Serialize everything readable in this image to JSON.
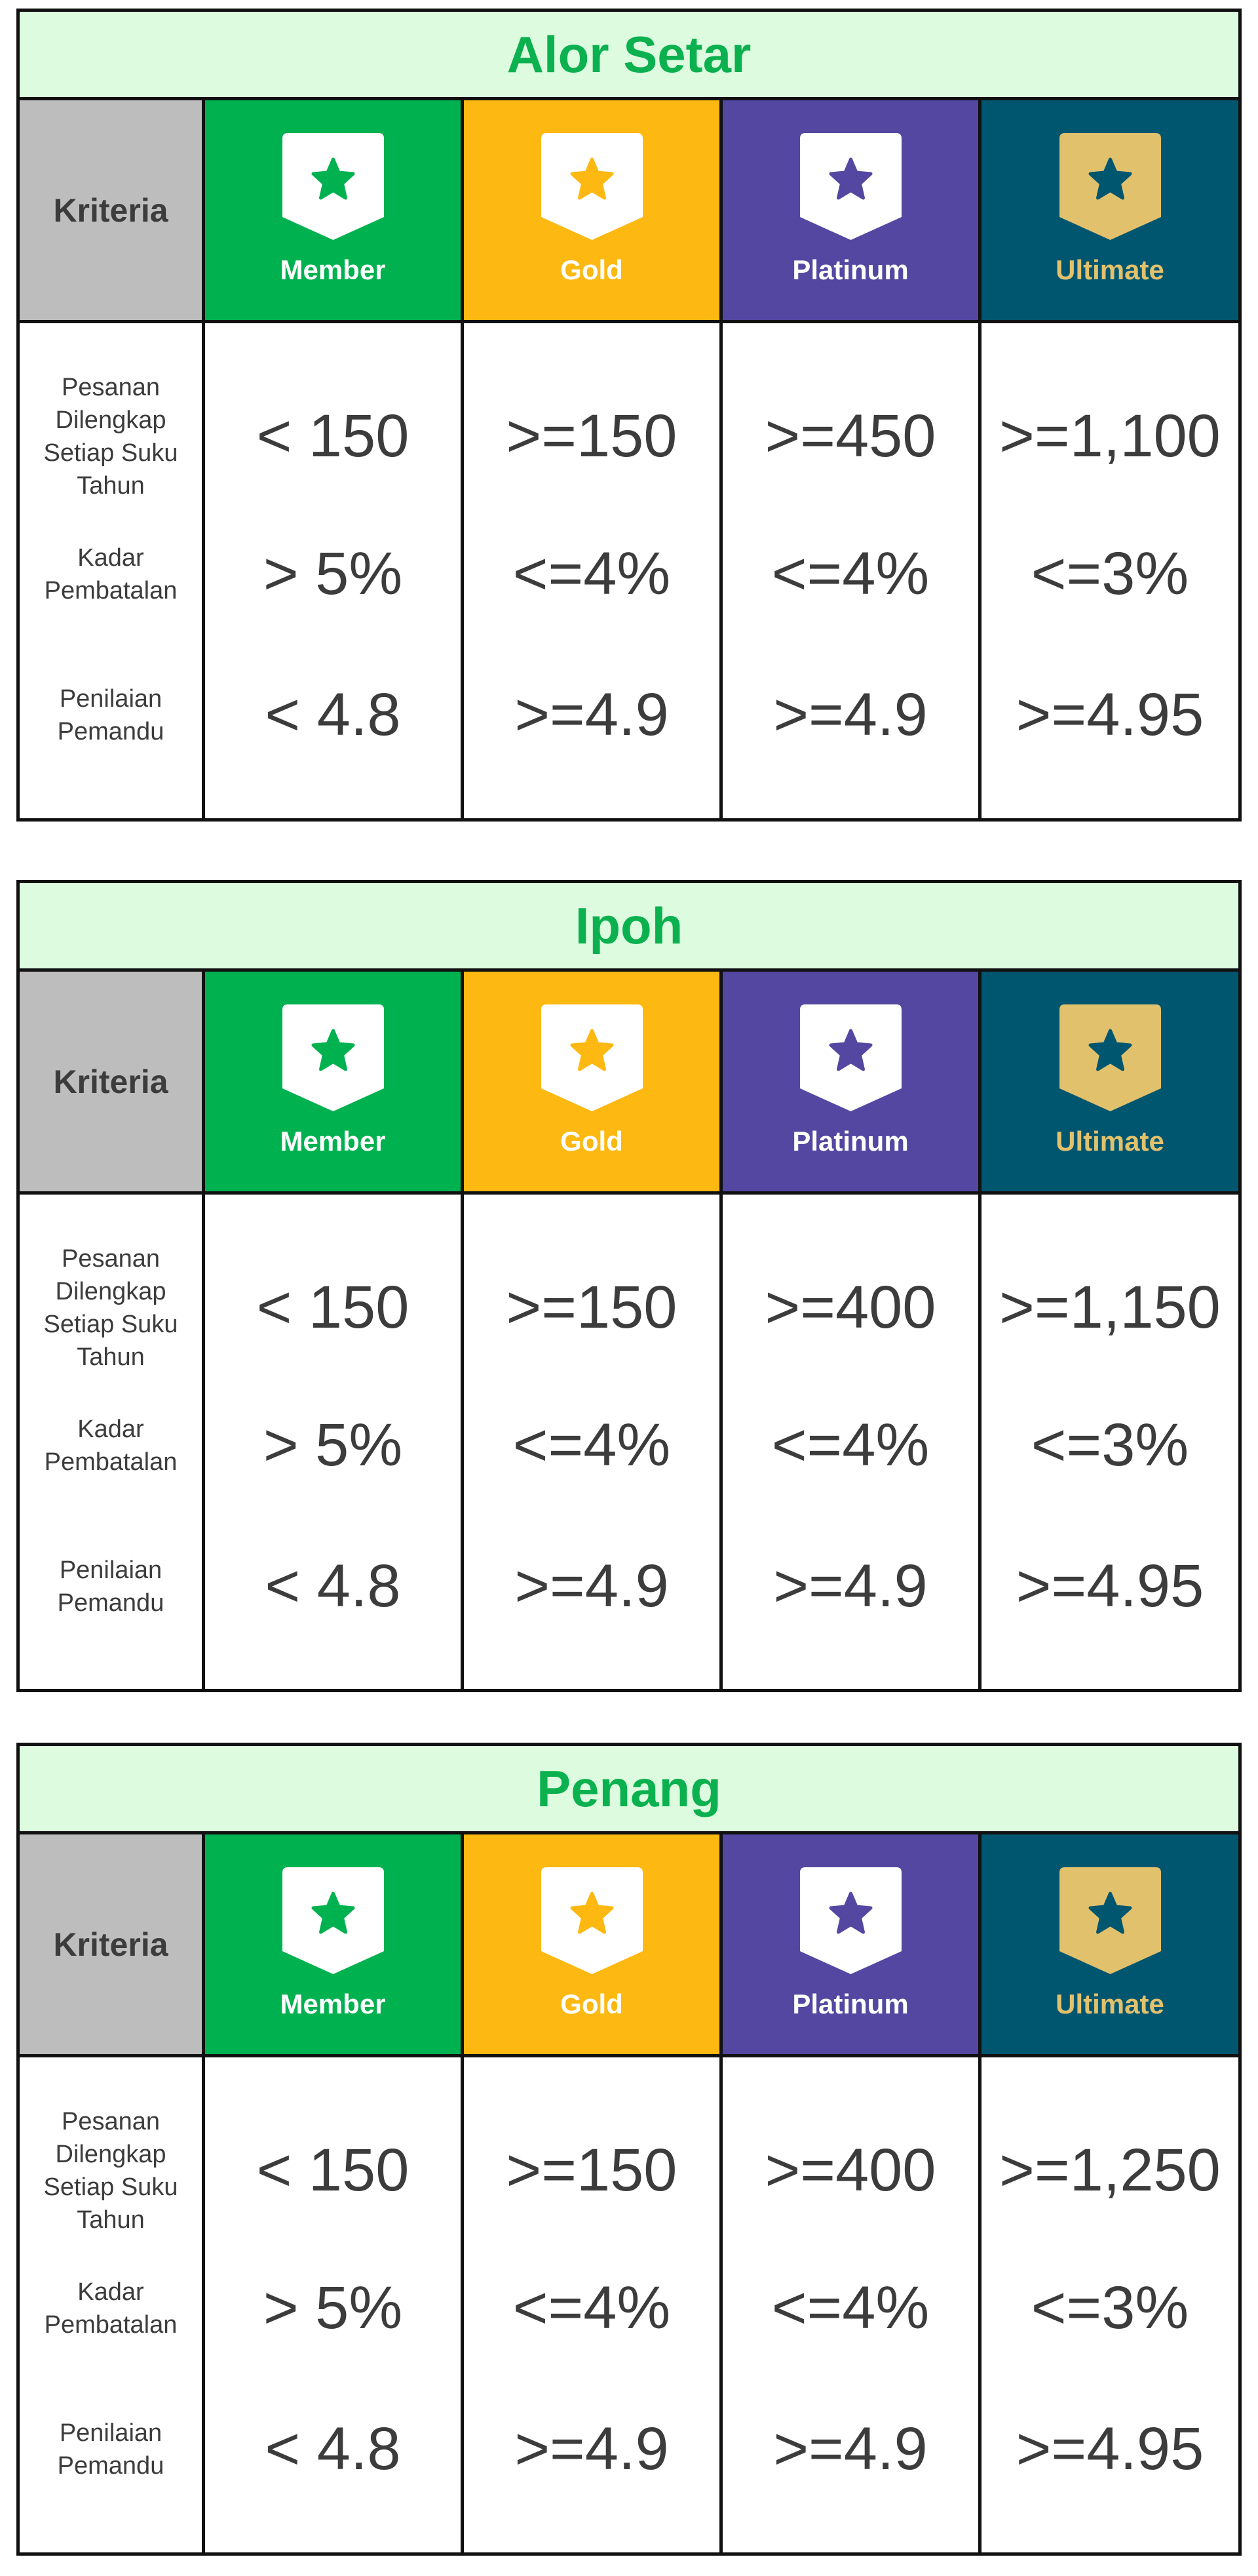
{
  "colors": {
    "title_bg": "#dcfbdf",
    "title_text": "#0bb04f",
    "kriteria_bg": "#bdbdbd",
    "member": "#00b14f",
    "gold": "#fdb811",
    "platinum": "#5447a1",
    "ultimate": "#01566f",
    "ultimate_text": "#e2c16d"
  },
  "header": {
    "kriteria": "Kriteria",
    "tiers": [
      "Member",
      "Gold",
      "Platinum",
      "Ultimate"
    ],
    "badge_icon": "star-shield-icon"
  },
  "criteria": {
    "orders": [
      "Pesanan",
      "Dilengkap",
      "Setiap Suku",
      "Tahun"
    ],
    "cancel": [
      "Kadar",
      "Pembatalan"
    ],
    "rating": [
      "Penilaian",
      "Pemandu"
    ]
  },
  "regions": [
    {
      "name": "Alor Setar",
      "orders": [
        "< 150",
        ">=150",
        ">=450",
        ">=1,100"
      ],
      "cancel": [
        "> 5%",
        "<=4%",
        "<=4%",
        "<=3%"
      ],
      "rating": [
        "< 4.8",
        ">=4.9",
        ">=4.9",
        ">=4.95"
      ]
    },
    {
      "name": "Ipoh",
      "orders": [
        "< 150",
        ">=150",
        ">=400",
        ">=1,150"
      ],
      "cancel": [
        "> 5%",
        "<=4%",
        "<=4%",
        "<=3%"
      ],
      "rating": [
        "< 4.8",
        ">=4.9",
        ">=4.9",
        ">=4.95"
      ]
    },
    {
      "name": "Penang",
      "orders": [
        "< 150",
        ">=150",
        ">=400",
        ">=1,250"
      ],
      "cancel": [
        "> 5%",
        "<=4%",
        "<=4%",
        "<=3%"
      ],
      "rating": [
        "< 4.8",
        ">=4.9",
        ">=4.9",
        ">=4.95"
      ]
    }
  ]
}
